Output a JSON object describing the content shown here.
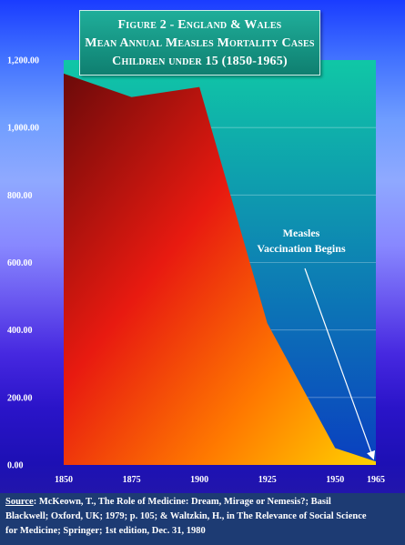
{
  "title": {
    "line1": "Figure 2 - England & Wales",
    "line2": "Mean Annual Measles Mortality Cases",
    "line3": "Children under 15 (1850-1965)"
  },
  "source": {
    "label": "Source",
    "line1": ":  McKeown, T., The Role of Medicine: Dream, Mirage or Nemesis?; Basil",
    "line2": "Blackwell; Oxford, UK; 1979; p. 105; & Waltzkin, H., in The Relevance of Social Science",
    "line3": "for Medicine; Springer; 1st edition, Dec. 31, 1980"
  },
  "colors": {
    "plot_top": "#10c7a6",
    "plot_bottom": "#0a3fc0",
    "area_dark": "#6b0a0a",
    "area_red": "#e81a10",
    "area_orange": "#ff7a00",
    "area_yellow": "#ffd200",
    "arrow": "#ffffff"
  },
  "chart_data": {
    "type": "area",
    "x": [
      1850,
      1875,
      1900,
      1925,
      1950,
      1965
    ],
    "values": [
      1160,
      1090,
      1120,
      420,
      50,
      10
    ],
    "ylim": [
      0,
      1200
    ],
    "xlim": [
      1850,
      1965
    ],
    "yticks": [
      "0.00",
      "200.00",
      "400.00",
      "600.00",
      "800.00",
      "1,000.00",
      "1,200.00"
    ],
    "xticks": [
      "1850",
      "1875",
      "1900",
      "1925",
      "1950",
      "1965"
    ],
    "grid": true,
    "annotation": {
      "line1": "Measles",
      "line2": "Vaccination Begins",
      "points_to_x": 1965,
      "points_to_y": 10
    }
  }
}
